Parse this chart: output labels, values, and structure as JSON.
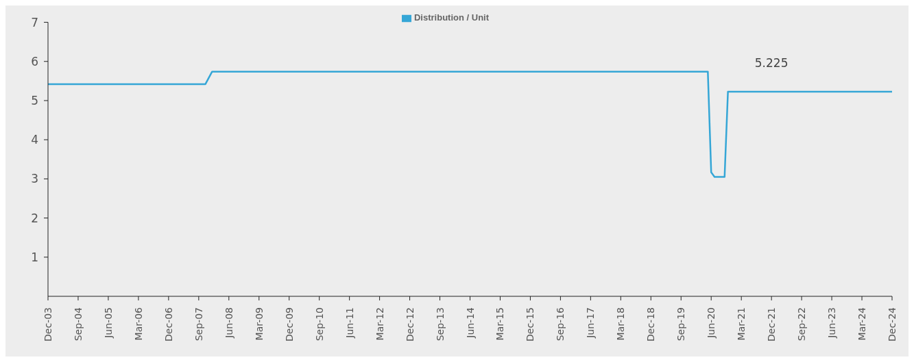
{
  "chart_data": {
    "type": "line",
    "x": [
      "2003-12",
      "2007-11",
      "2008-01",
      "2020-05",
      "2020-06",
      "2020-07",
      "2020-10",
      "2020-11",
      "2024-12"
    ],
    "series": [
      {
        "name": "Distribution / Unit",
        "color": "#35a6d6",
        "values": [
          5.42,
          5.42,
          5.74,
          5.74,
          3.17,
          3.05,
          3.05,
          5.225,
          5.225
        ]
      }
    ],
    "ylim": [
      0,
      7
    ],
    "yticks": [
      1,
      2,
      3,
      4,
      5,
      6,
      7
    ],
    "xlim": [
      "2003-12",
      "2024-12"
    ],
    "xticks": [
      {
        "value": "2003-12",
        "label": "Dec-03"
      },
      {
        "value": "2004-09",
        "label": "Sep-04"
      },
      {
        "value": "2005-06",
        "label": "Jun-05"
      },
      {
        "value": "2006-03",
        "label": "Mar-06"
      },
      {
        "value": "2006-12",
        "label": "Dec-06"
      },
      {
        "value": "2007-09",
        "label": "Sep-07"
      },
      {
        "value": "2008-06",
        "label": "Jun-08"
      },
      {
        "value": "2009-03",
        "label": "Mar-09"
      },
      {
        "value": "2009-12",
        "label": "Dec-09"
      },
      {
        "value": "2010-09",
        "label": "Sep-10"
      },
      {
        "value": "2011-06",
        "label": "Jun-11"
      },
      {
        "value": "2012-03",
        "label": "Mar-12"
      },
      {
        "value": "2012-12",
        "label": "Dec-12"
      },
      {
        "value": "2013-09",
        "label": "Sep-13"
      },
      {
        "value": "2014-06",
        "label": "Jun-14"
      },
      {
        "value": "2015-03",
        "label": "Mar-15"
      },
      {
        "value": "2015-12",
        "label": "Dec-15"
      },
      {
        "value": "2016-09",
        "label": "Sep-16"
      },
      {
        "value": "2017-06",
        "label": "Jun-17"
      },
      {
        "value": "2018-03",
        "label": "Mar-18"
      },
      {
        "value": "2018-12",
        "label": "Dec-18"
      },
      {
        "value": "2019-09",
        "label": "Sep-19"
      },
      {
        "value": "2020-06",
        "label": "Jun-20"
      },
      {
        "value": "2021-03",
        "label": "Mar-21"
      },
      {
        "value": "2021-12",
        "label": "Dec-21"
      },
      {
        "value": "2022-09",
        "label": "Sep-22"
      },
      {
        "value": "2023-06",
        "label": "Jun-23"
      },
      {
        "value": "2024-03",
        "label": "Mar-24"
      },
      {
        "value": "2024-12",
        "label": "Dec-24"
      }
    ],
    "annotations": [
      {
        "text": "5.225",
        "x": "2021-12",
        "y": 5.225
      }
    ],
    "legend": "top",
    "grid": false,
    "marker": "none",
    "line_style": "solid"
  }
}
